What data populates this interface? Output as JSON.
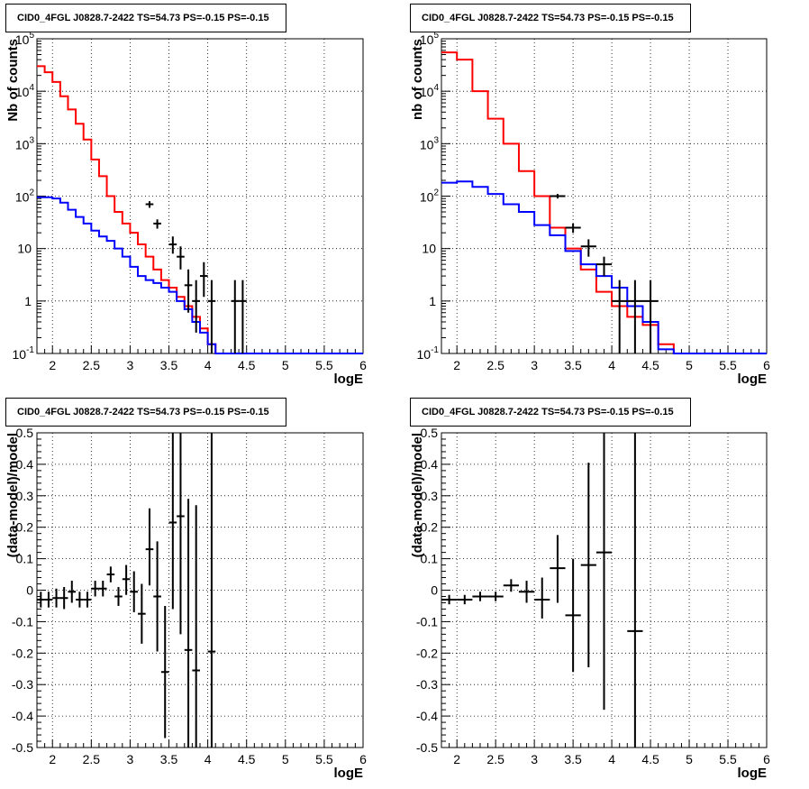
{
  "chart_data": [
    {
      "type": "step",
      "title": "CID0_4FGL J0828.7-2422 TS=54.73 PS=-0.15 PS=-0.15",
      "xlabel": "logE",
      "ylabel": "Nb of counts",
      "xlim": [
        1.8,
        6
      ],
      "ylim": [
        0.1,
        100000
      ],
      "yscale": "log",
      "grid": true,
      "x_ticks": [
        "2",
        "2.5",
        "3",
        "3.5",
        "4",
        "4.5",
        "5",
        "5.5",
        "6"
      ],
      "y_ticks": [
        "10^-1",
        "1",
        "10",
        "10^2",
        "10^3",
        "10^4",
        "10^5"
      ],
      "bin_start": 1.8,
      "bin_width": 0.1,
      "series": [
        {
          "color": "#ff0000",
          "values": [
            30000,
            23000,
            15000,
            8000,
            4500,
            2400,
            1200,
            500,
            240,
            100,
            50,
            30,
            20,
            12,
            7,
            4,
            2.5,
            1.8,
            1.2,
            0.8,
            0.5,
            0.3,
            0.15,
            0.1,
            0.1,
            0.1,
            0.1,
            0.1,
            0.1,
            0.1,
            0.1,
            0.1,
            0.1,
            0.1,
            0.1,
            0.1,
            0.1,
            0.1,
            0.1,
            0.1,
            0.1,
            0.1
          ]
        },
        {
          "color": "#0000ff",
          "values": [
            95,
            95,
            90,
            75,
            55,
            40,
            30,
            22,
            17,
            14,
            10,
            7,
            4.5,
            3,
            2.5,
            2.2,
            1.8,
            1.5,
            1.0,
            0.7,
            0.4,
            0.25,
            0.15,
            0.1,
            0.1,
            0.1,
            0.1,
            0.1,
            0.1,
            0.1,
            0.1,
            0.1,
            0.1,
            0.1,
            0.1,
            0.1,
            0.1,
            0.1,
            0.1,
            0.1,
            0.1,
            0.1
          ]
        }
      ],
      "data_points": [
        {
          "x": 3.25,
          "y": 70,
          "err": [
            60,
            80
          ]
        },
        {
          "x": 3.35,
          "y": 30,
          "err": [
            24,
            36
          ]
        },
        {
          "x": 3.55,
          "y": 12,
          "err": [
            8,
            17
          ]
        },
        {
          "x": 3.65,
          "y": 7,
          "err": [
            4,
            11
          ]
        },
        {
          "x": 3.75,
          "y": 2,
          "err": [
            0.6,
            4
          ]
        },
        {
          "x": 3.85,
          "y": 1,
          "err": [
            0.25,
            2.5
          ]
        },
        {
          "x": 3.95,
          "y": 3,
          "err": [
            1.2,
            5.5
          ]
        },
        {
          "x": 4.05,
          "y": 1,
          "err": [
            0.1,
            2.5
          ]
        },
        {
          "x": 4.35,
          "y": 1,
          "err": [
            0.1,
            2.5
          ]
        },
        {
          "x": 4.45,
          "y": 1,
          "err": [
            0.1,
            2.5
          ]
        }
      ]
    },
    {
      "type": "step",
      "title": "CID0_4FGL J0828.7-2422 TS=54.73 PS=-0.15 PS=-0.15",
      "xlabel": "logE",
      "ylabel": "nb of counts",
      "xlim": [
        1.8,
        6
      ],
      "ylim": [
        0.1,
        100000
      ],
      "yscale": "log",
      "grid": true,
      "x_ticks": [
        "2",
        "2.5",
        "3",
        "3.5",
        "4",
        "4.5",
        "5",
        "5.5",
        "6"
      ],
      "y_ticks": [
        "10^-1",
        "1",
        "10",
        "10^2",
        "10^3",
        "10^4",
        "10^5"
      ],
      "bin_start": 1.8,
      "bin_width": 0.2,
      "series": [
        {
          "color": "#ff0000",
          "values": [
            55000,
            40000,
            10000,
            3000,
            1000,
            300,
            100,
            25,
            10,
            4,
            1.5,
            0.8,
            0.5,
            0.35,
            0.15,
            0.1,
            0.1,
            0.1,
            0.1,
            0.1,
            0.1
          ]
        },
        {
          "color": "#0000ff",
          "values": [
            180,
            190,
            150,
            110,
            70,
            50,
            28,
            18,
            9,
            5,
            3,
            1.8,
            0.8,
            0.4,
            0.12,
            0.1,
            0.1,
            0.1,
            0.1,
            0.1,
            0.1
          ]
        }
      ],
      "data_points": [
        {
          "x": 3.3,
          "y": 100,
          "err": [
            90,
            110
          ]
        },
        {
          "x": 3.5,
          "y": 25,
          "err": [
            20,
            30
          ]
        },
        {
          "x": 3.7,
          "y": 11,
          "err": [
            7,
            15
          ]
        },
        {
          "x": 3.9,
          "y": 5,
          "err": [
            3,
            7
          ]
        },
        {
          "x": 4.1,
          "y": 1,
          "err": [
            0.1,
            2.5
          ]
        },
        {
          "x": 4.3,
          "y": 1,
          "err": [
            0.1,
            2.5
          ]
        },
        {
          "x": 4.5,
          "y": 1,
          "err": [
            0.1,
            2.5
          ]
        }
      ]
    },
    {
      "type": "scatter",
      "title": "CID0_4FGL J0828.7-2422 TS=54.73 PS=-0.15 PS=-0.15",
      "xlabel": "logE",
      "ylabel": "(data-model)/model",
      "xlim": [
        1.8,
        6
      ],
      "ylim": [
        -0.5,
        0.5
      ],
      "grid": true,
      "x_ticks": [
        "2",
        "2.5",
        "3",
        "3.5",
        "4",
        "4.5",
        "5",
        "5.5",
        "6"
      ],
      "y_ticks": [
        "-0.5",
        "-0.4",
        "-0.3",
        "-0.2",
        "-0.1",
        "0",
        "0.1",
        "0.2",
        "0.3",
        "0.4",
        "0.5"
      ],
      "half_width": 0.05,
      "points": [
        {
          "x": 1.85,
          "y": -0.03,
          "lo": -0.055,
          "hi": -0.005
        },
        {
          "x": 1.95,
          "y": -0.03,
          "lo": -0.055,
          "hi": -0.005
        },
        {
          "x": 2.05,
          "y": -0.025,
          "lo": -0.055,
          "hi": 0.005
        },
        {
          "x": 2.15,
          "y": -0.025,
          "lo": -0.06,
          "hi": 0.01
        },
        {
          "x": 2.25,
          "y": -0.005,
          "lo": -0.04,
          "hi": 0.03
        },
        {
          "x": 2.35,
          "y": -0.03,
          "lo": -0.055,
          "hi": -0.005
        },
        {
          "x": 2.45,
          "y": -0.03,
          "lo": -0.055,
          "hi": -0.005
        },
        {
          "x": 2.55,
          "y": 0.005,
          "lo": -0.02,
          "hi": 0.03
        },
        {
          "x": 2.65,
          "y": 0.005,
          "lo": -0.02,
          "hi": 0.03
        },
        {
          "x": 2.75,
          "y": 0.05,
          "lo": 0.025,
          "hi": 0.075
        },
        {
          "x": 2.85,
          "y": -0.02,
          "lo": -0.05,
          "hi": 0.01
        },
        {
          "x": 2.95,
          "y": 0.035,
          "lo": -0.015,
          "hi": 0.08
        },
        {
          "x": 3.05,
          "y": -0.005,
          "lo": -0.07,
          "hi": 0.06
        },
        {
          "x": 3.15,
          "y": -0.075,
          "lo": -0.17,
          "hi": 0.02
        },
        {
          "x": 3.25,
          "y": 0.13,
          "lo": 0.015,
          "hi": 0.26
        },
        {
          "x": 3.35,
          "y": -0.02,
          "lo": -0.195,
          "hi": 0.155
        },
        {
          "x": 3.45,
          "y": -0.26,
          "lo": -0.47,
          "hi": -0.05
        },
        {
          "x": 3.55,
          "y": 0.215,
          "lo": -0.06,
          "hi": 0.5
        },
        {
          "x": 3.65,
          "y": 0.235,
          "lo": -0.14,
          "hi": 0.5
        },
        {
          "x": 3.75,
          "y": -0.19,
          "lo": -0.5,
          "hi": 0.29
        },
        {
          "x": 3.85,
          "y": -0.255,
          "lo": -0.5,
          "hi": 0.27
        },
        {
          "x": 4.05,
          "y": -0.195,
          "lo": -0.5,
          "hi": 0.5
        }
      ]
    },
    {
      "type": "scatter",
      "title": "CID0_4FGL J0828.7-2422 TS=54.73 PS=-0.15 PS=-0.15",
      "xlabel": "logE",
      "ylabel": "(data-model)/model",
      "xlim": [
        1.8,
        6
      ],
      "ylim": [
        -0.5,
        0.5
      ],
      "grid": true,
      "x_ticks": [
        "2",
        "2.5",
        "3",
        "3.5",
        "4",
        "4.5",
        "5",
        "5.5",
        "6"
      ],
      "y_ticks": [
        "-0.5",
        "-0.4",
        "-0.3",
        "-0.2",
        "-0.1",
        "0",
        "0.1",
        "0.2",
        "0.3",
        "0.4",
        "0.5"
      ],
      "half_width": 0.1,
      "points": [
        {
          "x": 1.9,
          "y": -0.03,
          "lo": -0.045,
          "hi": -0.015
        },
        {
          "x": 2.1,
          "y": -0.03,
          "lo": -0.045,
          "hi": -0.015
        },
        {
          "x": 2.3,
          "y": -0.02,
          "lo": -0.035,
          "hi": -0.005
        },
        {
          "x": 2.5,
          "y": -0.02,
          "lo": -0.035,
          "hi": -0.005
        },
        {
          "x": 2.7,
          "y": 0.015,
          "lo": -0.005,
          "hi": 0.035
        },
        {
          "x": 2.9,
          "y": -0.005,
          "lo": -0.04,
          "hi": 0.03
        },
        {
          "x": 3.1,
          "y": -0.03,
          "lo": -0.09,
          "hi": 0.04
        },
        {
          "x": 3.3,
          "y": 0.07,
          "lo": -0.04,
          "hi": 0.175
        },
        {
          "x": 3.5,
          "y": -0.08,
          "lo": -0.26,
          "hi": 0.1
        },
        {
          "x": 3.7,
          "y": 0.08,
          "lo": -0.245,
          "hi": 0.405
        },
        {
          "x": 3.9,
          "y": 0.12,
          "lo": -0.38,
          "hi": 0.5
        },
        {
          "x": 4.3,
          "y": -0.13,
          "lo": -0.5,
          "hi": 0.5
        }
      ]
    }
  ]
}
